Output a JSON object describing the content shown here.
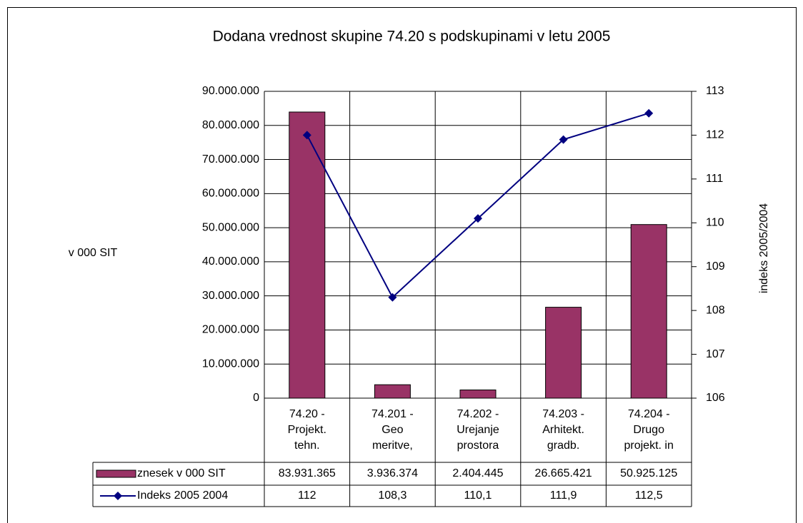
{
  "chart_data": {
    "type": "bar-line",
    "title": "Dodana vrednost skupine 74.20 s podskupinami v letu 2005",
    "y_label": "v 000 SIT",
    "y2_label": "indeks 2005/2004",
    "categories": [
      "74.20 -\nProjekt.\ntehn.",
      "74.201 -\nGeo\nmeritve,",
      "74.202 -\nUrejanje\nprostora",
      "74.203 -\nArhitekt.\ngradb.",
      "74.204 -\nDrugo\nprojekt. in"
    ],
    "series": [
      {
        "name": "znesek v 000 SIT",
        "type": "bar",
        "color": "#993366",
        "values": [
          83931365,
          3936374,
          2404445,
          26665421,
          50925125
        ],
        "value_labels": [
          "83.931.365",
          "3.936.374",
          "2.404.445",
          "26.665.421",
          "50.925.125"
        ]
      },
      {
        "name": "Indeks 2005 2004",
        "type": "line",
        "axis": "y2",
        "color": "#000080",
        "values": [
          112,
          108.3,
          110.1,
          111.9,
          112.5
        ],
        "value_labels": [
          "112",
          "108,3",
          "110,1",
          "111,9",
          "112,5"
        ]
      }
    ],
    "ylim": [
      0,
      90000000
    ],
    "yticks": [
      0,
      {
        "value": 10000000,
        "label": "10.000.000"
      },
      {
        "value": 20000000,
        "label": "20.000.000"
      },
      {
        "value": 30000000,
        "label": "30.000.000"
      },
      {
        "value": 40000000,
        "label": "40.000.000"
      },
      {
        "value": 50000000,
        "label": "50.000.000"
      },
      {
        "value": 60000000,
        "label": "60.000.000"
      },
      {
        "value": 70000000,
        "label": "70.000.000"
      },
      {
        "value": 80000000,
        "label": "80.000.000"
      },
      {
        "value": 90000000,
        "label": "90.000.000"
      }
    ],
    "y2lim": [
      106,
      113
    ],
    "y2ticks": [
      106,
      107,
      108,
      109,
      110,
      111,
      112,
      113
    ],
    "grid": true,
    "data_table": true
  }
}
